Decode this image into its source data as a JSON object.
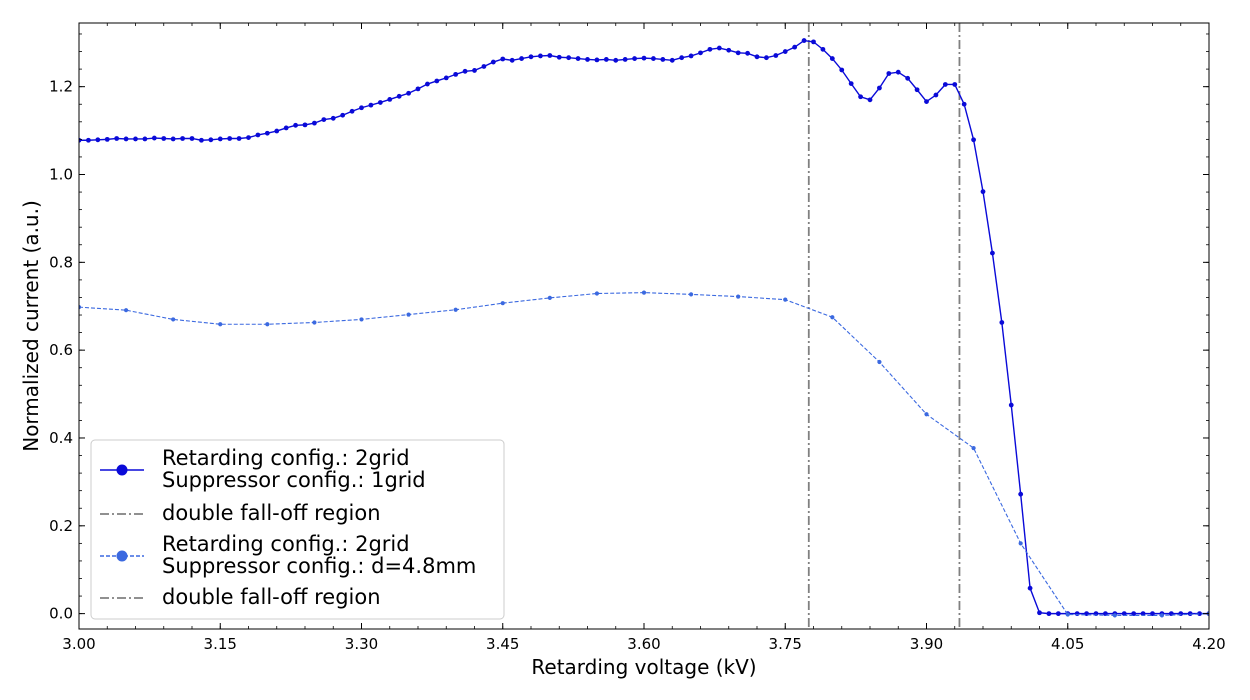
{
  "chart_data": {
    "type": "line",
    "xlabel": "Retarding voltage (kV)",
    "ylabel": "Normalized current (a.u.)",
    "xlim": [
      3.0,
      4.2
    ],
    "ylim": [
      -0.035,
      1.345
    ],
    "xticks": [
      3.0,
      3.15,
      3.3,
      3.45,
      3.6,
      3.75,
      3.9,
      4.05,
      4.2
    ],
    "xtick_labels": [
      "3.00",
      "3.15",
      "3.30",
      "3.45",
      "3.60",
      "3.75",
      "3.90",
      "4.05",
      "4.20"
    ],
    "yticks": [
      0.0,
      0.2,
      0.4,
      0.6,
      0.8,
      1.0,
      1.2
    ],
    "ytick_labels": [
      "0.0",
      "0.2",
      "0.4",
      "0.6",
      "0.8",
      "1.0",
      "1.2"
    ],
    "grid": false,
    "legend_position": "lower-left",
    "series": [
      {
        "name_lines": [
          "Retarding config.: 2grid",
          "Suppressor config.: 1grid"
        ],
        "color": "#0a0ad8",
        "line_style": "solid",
        "marker": "circle",
        "points": [
          [
            3.0,
            1.078
          ],
          [
            3.01,
            1.078
          ],
          [
            3.02,
            1.079
          ],
          [
            3.03,
            1.08
          ],
          [
            3.04,
            1.082
          ],
          [
            3.05,
            1.081
          ],
          [
            3.06,
            1.081
          ],
          [
            3.07,
            1.081
          ],
          [
            3.08,
            1.083
          ],
          [
            3.09,
            1.082
          ],
          [
            3.1,
            1.081
          ],
          [
            3.11,
            1.082
          ],
          [
            3.12,
            1.082
          ],
          [
            3.13,
            1.078
          ],
          [
            3.14,
            1.079
          ],
          [
            3.15,
            1.081
          ],
          [
            3.16,
            1.082
          ],
          [
            3.17,
            1.082
          ],
          [
            3.18,
            1.084
          ],
          [
            3.19,
            1.09
          ],
          [
            3.2,
            1.094
          ],
          [
            3.21,
            1.099
          ],
          [
            3.22,
            1.106
          ],
          [
            3.23,
            1.112
          ],
          [
            3.24,
            1.113
          ],
          [
            3.25,
            1.117
          ],
          [
            3.26,
            1.125
          ],
          [
            3.27,
            1.128
          ],
          [
            3.28,
            1.135
          ],
          [
            3.29,
            1.144
          ],
          [
            3.3,
            1.152
          ],
          [
            3.31,
            1.158
          ],
          [
            3.32,
            1.164
          ],
          [
            3.33,
            1.171
          ],
          [
            3.34,
            1.178
          ],
          [
            3.35,
            1.185
          ],
          [
            3.36,
            1.195
          ],
          [
            3.37,
            1.206
          ],
          [
            3.38,
            1.213
          ],
          [
            3.39,
            1.22
          ],
          [
            3.4,
            1.228
          ],
          [
            3.41,
            1.235
          ],
          [
            3.42,
            1.237
          ],
          [
            3.43,
            1.246
          ],
          [
            3.44,
            1.256
          ],
          [
            3.45,
            1.263
          ],
          [
            3.46,
            1.26
          ],
          [
            3.47,
            1.264
          ],
          [
            3.48,
            1.268
          ],
          [
            3.49,
            1.27
          ],
          [
            3.5,
            1.271
          ],
          [
            3.51,
            1.267
          ],
          [
            3.52,
            1.266
          ],
          [
            3.53,
            1.264
          ],
          [
            3.54,
            1.262
          ],
          [
            3.55,
            1.261
          ],
          [
            3.56,
            1.262
          ],
          [
            3.57,
            1.26
          ],
          [
            3.58,
            1.262
          ],
          [
            3.59,
            1.264
          ],
          [
            3.6,
            1.265
          ],
          [
            3.61,
            1.264
          ],
          [
            3.62,
            1.262
          ],
          [
            3.63,
            1.26
          ],
          [
            3.64,
            1.266
          ],
          [
            3.65,
            1.27
          ],
          [
            3.66,
            1.277
          ],
          [
            3.67,
            1.285
          ],
          [
            3.68,
            1.288
          ],
          [
            3.69,
            1.283
          ],
          [
            3.7,
            1.277
          ],
          [
            3.71,
            1.276
          ],
          [
            3.72,
            1.268
          ],
          [
            3.73,
            1.266
          ],
          [
            3.74,
            1.271
          ],
          [
            3.75,
            1.28
          ],
          [
            3.76,
            1.29
          ],
          [
            3.77,
            1.305
          ],
          [
            3.78,
            1.302
          ],
          [
            3.79,
            1.285
          ],
          [
            3.8,
            1.264
          ],
          [
            3.81,
            1.238
          ],
          [
            3.82,
            1.207
          ],
          [
            3.83,
            1.177
          ],
          [
            3.84,
            1.17
          ],
          [
            3.85,
            1.197
          ],
          [
            3.86,
            1.23
          ],
          [
            3.87,
            1.233
          ],
          [
            3.88,
            1.219
          ],
          [
            3.89,
            1.193
          ],
          [
            3.9,
            1.166
          ],
          [
            3.91,
            1.181
          ],
          [
            3.92,
            1.205
          ],
          [
            3.93,
            1.205
          ],
          [
            3.94,
            1.16
          ],
          [
            3.95,
            1.079
          ],
          [
            3.96,
            0.961
          ],
          [
            3.97,
            0.821
          ],
          [
            3.98,
            0.663
          ],
          [
            3.99,
            0.475
          ],
          [
            4.0,
            0.272
          ],
          [
            4.01,
            0.058
          ],
          [
            4.02,
            0.002
          ],
          [
            4.03,
            0.0
          ],
          [
            4.04,
            0.0
          ],
          [
            4.05,
            0.0
          ],
          [
            4.06,
            0.0
          ],
          [
            4.07,
            0.0
          ],
          [
            4.08,
            0.0
          ],
          [
            4.09,
            0.0
          ],
          [
            4.1,
            0.0
          ],
          [
            4.11,
            0.0
          ],
          [
            4.12,
            0.0
          ],
          [
            4.13,
            0.0
          ],
          [
            4.14,
            0.0
          ],
          [
            4.15,
            0.0
          ],
          [
            4.16,
            0.0
          ],
          [
            4.17,
            0.0
          ],
          [
            4.18,
            0.0
          ],
          [
            4.19,
            0.0
          ],
          [
            4.2,
            0.0
          ]
        ]
      },
      {
        "name_lines": [
          "Retarding config.: 2grid",
          "Suppressor config.: d=4.8mm"
        ],
        "color": "#3b69e0",
        "line_style": "dashed",
        "marker": "circle",
        "points": [
          [
            3.0,
            0.698
          ],
          [
            3.05,
            0.691
          ],
          [
            3.1,
            0.67
          ],
          [
            3.15,
            0.659
          ],
          [
            3.2,
            0.659
          ],
          [
            3.25,
            0.663
          ],
          [
            3.3,
            0.67
          ],
          [
            3.35,
            0.681
          ],
          [
            3.4,
            0.692
          ],
          [
            3.45,
            0.707
          ],
          [
            3.5,
            0.719
          ],
          [
            3.55,
            0.729
          ],
          [
            3.6,
            0.731
          ],
          [
            3.65,
            0.727
          ],
          [
            3.7,
            0.722
          ],
          [
            3.75,
            0.715
          ],
          [
            3.8,
            0.675
          ],
          [
            3.85,
            0.573
          ],
          [
            3.9,
            0.454
          ],
          [
            3.95,
            0.377
          ],
          [
            4.0,
            0.16
          ],
          [
            4.05,
            -0.002
          ],
          [
            4.1,
            -0.004
          ],
          [
            4.15,
            -0.004
          ],
          [
            4.2,
            0.0
          ]
        ]
      }
    ],
    "vlines": [
      {
        "x": 3.775,
        "color": "#808080",
        "style": "dashdot"
      },
      {
        "x": 3.935,
        "color": "#808080",
        "style": "dashdot"
      }
    ],
    "legend": [
      {
        "kind": "series",
        "series_index": 0,
        "lines": [
          "Retarding config.: 2grid",
          "Suppressor config.: 1grid"
        ]
      },
      {
        "kind": "vline",
        "lines": [
          "double fall-off region"
        ]
      },
      {
        "kind": "series",
        "series_index": 1,
        "lines": [
          "Retarding config.: 2grid",
          "Suppressor config.: d=4.8mm"
        ]
      },
      {
        "kind": "vline",
        "lines": [
          "double fall-off region"
        ]
      }
    ]
  }
}
